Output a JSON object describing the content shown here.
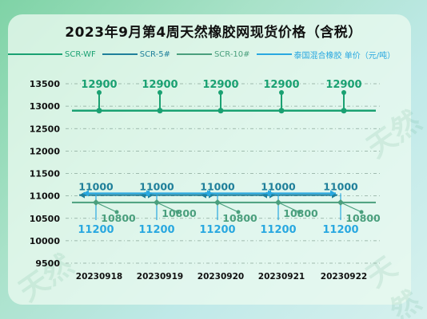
{
  "chart_data": {
    "type": "line",
    "title": "2023年9月第4周天然橡胶网现货价格（含税）",
    "categories": [
      "20230918",
      "20230919",
      "20230920",
      "20230921",
      "20230922"
    ],
    "series": [
      {
        "name": "SCR-WF",
        "values": [
          12900,
          12900,
          12900,
          12900,
          12900
        ],
        "color": "#1aa172",
        "labels": [
          "12900",
          "12900",
          "12900",
          "12900",
          "12900"
        ]
      },
      {
        "name": "SCR-5#",
        "values": [
          11000,
          11000,
          11000,
          11000,
          11000
        ],
        "color": "#1f7f9a",
        "labels": [
          "11000",
          "11000",
          "11000",
          "11000",
          "11000"
        ]
      },
      {
        "name": "SCR-10#",
        "values": [
          10800,
          10800,
          10800,
          10800,
          10800
        ],
        "color": "#4a9f7d",
        "labels": [
          "10800",
          "10800",
          "10800",
          "10800",
          "10800"
        ]
      },
      {
        "name": "泰国混合橡胶 单价（元/吨）",
        "values": [
          11200,
          11200,
          11200,
          11200,
          11200
        ],
        "color": "#29a8e0",
        "labels": [
          "11200",
          "11200",
          "11200",
          "11200",
          "11200"
        ]
      }
    ],
    "yticks": [
      "13500",
      "13000",
      "12500",
      "12000",
      "11500",
      "11000",
      "10500",
      "10000",
      "9500"
    ],
    "ylim": [
      9500,
      13500
    ],
    "grid": true,
    "legend_position": "top"
  }
}
